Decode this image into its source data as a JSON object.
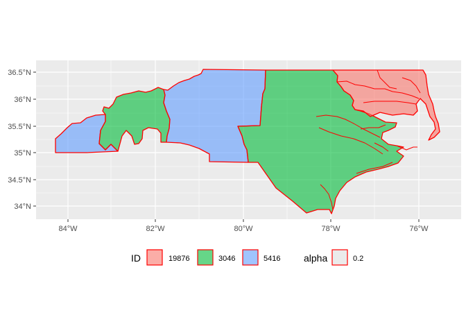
{
  "chart_data": {
    "type": "map",
    "x_ticks": [
      "84°W",
      "82°W",
      "80°W",
      "78°W",
      "76°W"
    ],
    "y_ticks": [
      "34°N",
      "34.5°N",
      "35°N",
      "35.5°N",
      "36°N",
      "36.5°N"
    ],
    "regions": [
      {
        "id": "19876",
        "color": "#f8766d"
      },
      {
        "id": "3046",
        "color": "#00ba38"
      },
      {
        "id": "5416",
        "color": "#619cff"
      }
    ],
    "border_color": "#ff0000",
    "fill_opacity": 0.6,
    "panel_background": "#ebebeb",
    "grid": true,
    "legend": {
      "position": "bottom",
      "fill_title": "ID",
      "fill_entries": [
        "19876",
        "3046",
        "5416"
      ],
      "alpha_title": "alpha",
      "alpha_entries": [
        "0.2"
      ]
    }
  }
}
